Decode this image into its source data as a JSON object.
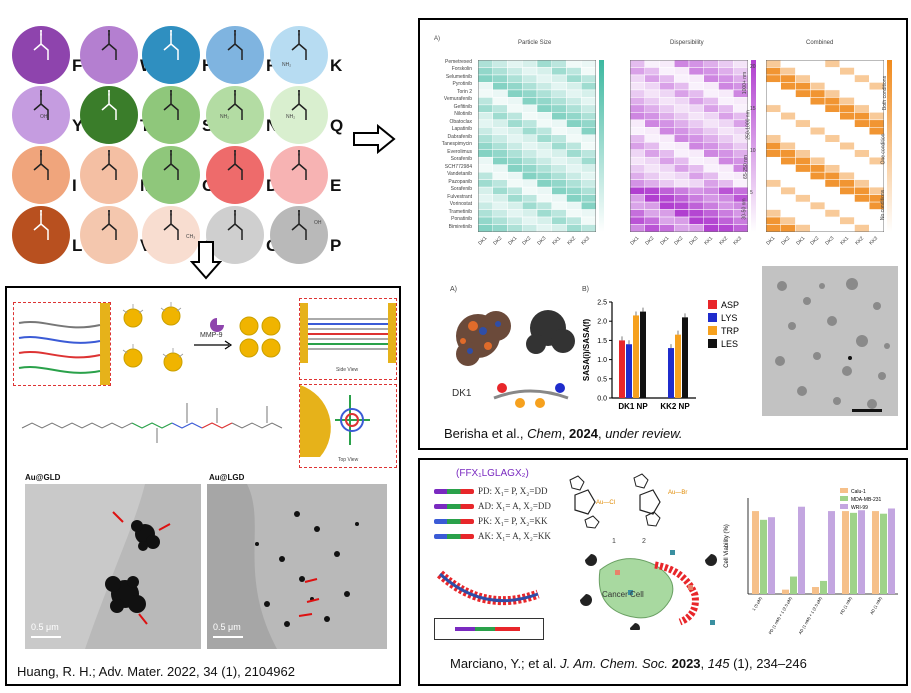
{
  "amino_acids": [
    {
      "letter": "F",
      "color": "#8e44ad"
    },
    {
      "letter": "W",
      "color": "#b47fd0"
    },
    {
      "letter": "H",
      "color": "#2f8fc0"
    },
    {
      "letter": "R",
      "color": "#7fb4e0"
    },
    {
      "letter": "K",
      "color": "#b7dcf2"
    },
    {
      "letter": "Y",
      "color": "#c59ce0"
    },
    {
      "letter": "T",
      "color": "#3a7d2a"
    },
    {
      "letter": "S",
      "color": "#8fc77b"
    },
    {
      "letter": "N",
      "color": "#b3dca3"
    },
    {
      "letter": "Q",
      "color": "#d9efcf"
    },
    {
      "letter": "I",
      "color": "#f0a57c"
    },
    {
      "letter": "M",
      "color": "#f4bfa3"
    },
    {
      "letter": "C",
      "color": "#8fc77b"
    },
    {
      "letter": "D",
      "color": "#ee6b6b"
    },
    {
      "letter": "E",
      "color": "#f7b3b3"
    },
    {
      "letter": "L",
      "color": "#b8501f"
    },
    {
      "letter": "V",
      "color": "#f4c7ae"
    },
    {
      "letter": "A",
      "color": "#f8ddd0"
    },
    {
      "letter": "G",
      "color": "#cfcfcf"
    },
    {
      "letter": "P",
      "color": "#b9b9b9"
    }
  ],
  "amino_acid_labels": {
    "alanine_methyl": "CH₃",
    "asparagine_amine": "NH₂",
    "glutamine_amine": "NH₂",
    "lysine_amine": "NH₂",
    "hydroxyl": "OH",
    "proline_acid": "OH"
  },
  "panel_bottom_left": {
    "caption": "Huang, R. H.; Adv. Mater. 2022, 34 (1), 2104962",
    "enzyme_label": "MMP-9",
    "side_view": "Side View",
    "top_view": "Top View",
    "em_left_title": "Au@GLD",
    "em_right_title": "Au@LGD",
    "scale_left": "0.5 μm",
    "scale_right": "0.5 μm"
  },
  "panel_top_right": {
    "panel_a_label": "A)",
    "heatmaps": [
      {
        "title": "Particle Size",
        "color": "#3cb8a0"
      },
      {
        "title": "Dispersibility",
        "color": "#b13fd0"
      },
      {
        "title": "Combined",
        "color": "#f08a1c"
      }
    ],
    "drugs": [
      "Pemetrexed",
      "Forskolin",
      "Selumetinib",
      "Pyrotinib",
      "Torin 2",
      "Vemurafenib",
      "Gefitinib",
      "Nilotinib",
      "Obatoclax",
      "Lapatinib",
      "Dabrafenib",
      "Tanespimycin",
      "Everolimus",
      "Sorafenib",
      "SCH772984",
      "Vandetanib",
      "Pazopanib",
      "Sorafenib",
      "Fulvestrant",
      "Vorinostat",
      "Trametinib",
      "Ponatinib",
      "Bimiretinib"
    ],
    "peptides": [
      "DK1",
      "DK2",
      "DK1",
      "DK2",
      "DK3",
      "KK1",
      "KK2",
      "KK3"
    ],
    "size_bands": [
      "1000+ nm",
      "250-1000 nm",
      "65-250 nm",
      "30-50 nm"
    ],
    "combined_bands": [
      "Both conditions",
      "One condition",
      "No conditions"
    ],
    "combined_ticks": [
      "20",
      "15",
      "10",
      "5"
    ],
    "panel_a2_label": "A)",
    "panel_b_label": "B)",
    "dk1_label": "DK1",
    "caption_authors": "Berisha et al., ",
    "caption_journal": "Chem",
    "caption_year": "2024",
    "caption_status": "under review."
  },
  "chart_data": {
    "type": "bar",
    "categories": [
      "DK1 NP",
      "KK2 NP"
    ],
    "ylabel": "SASA(i)/SASA(f)",
    "ylim": [
      0,
      2.5
    ],
    "yticks": [
      "0.0",
      "0.5",
      "1.0",
      "1.5",
      "2.0",
      "2.5"
    ],
    "legend_position": "right",
    "series": [
      {
        "name": "ASP",
        "color": "#e8262a",
        "values": [
          1.5,
          0.0
        ]
      },
      {
        "name": "LYS",
        "color": "#1f2ccc",
        "values": [
          1.4,
          1.3
        ]
      },
      {
        "name": "TRP",
        "color": "#f6a11e",
        "values": [
          2.15,
          1.65
        ]
      },
      {
        "name": "LES",
        "color": "#111111",
        "values": [
          2.25,
          2.1
        ]
      }
    ]
  },
  "panel_bottom_right": {
    "formula": "(FFX₁LGLAGX₂)",
    "variants": [
      {
        "text": "PD: X₁= P, X₂=DD"
      },
      {
        "text": "AD: X₁= A, X₂=DD"
      },
      {
        "text": "PK: X₁= P, X₂=KK"
      },
      {
        "text": "AK: X₁= A, X₂=KK"
      }
    ],
    "ligand_cl": "Au—Cl",
    "ligand_br": "Au—Br",
    "label_1": "1",
    "label_2": "2",
    "cancer_cell": "Cancer Cell",
    "viability_ylabel": "Cell Viability (%)",
    "viability_legend": [
      "Calu-1",
      "MDA-MB-231",
      "WRI-99"
    ],
    "viability_xlabels": [
      "1 (5 μM)",
      "PD (1 mM) + 1 (2.5 μM)",
      "AD (1 mM) + 1 (2.5 μM)",
      "PD (1 mM)",
      "AD (1 mM)"
    ],
    "caption_authors": "Marciano, Y.; et al. ",
    "caption_journal": "J. Am. Chem. Soc.",
    "caption_year": "2023",
    "caption_vol": "145",
    "caption_pages": " (1), 234–246"
  }
}
